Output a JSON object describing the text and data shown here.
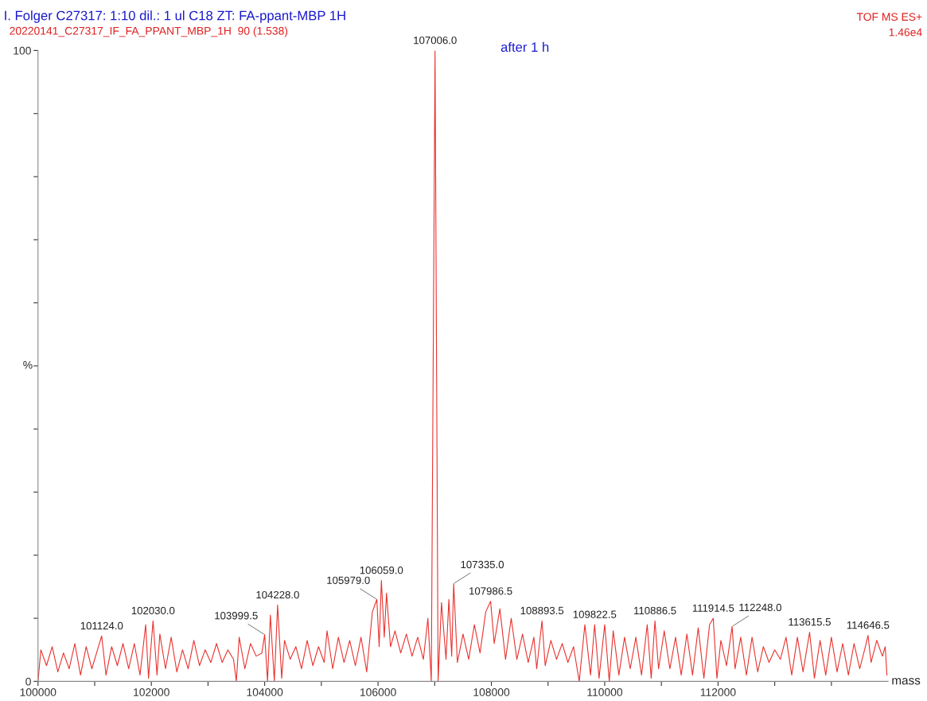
{
  "chart_data": {
    "type": "line",
    "title": "I. Folger C27317: 1:10 dil.: 1 ul C18 ZT: FA-ppant-MBP 1H",
    "subtitle": "20220141_C27317_IF_FA_PPANT_MBP_1H  90 (1.538)",
    "xlabel": "mass",
    "ylabel": "%",
    "xlim": [
      100000,
      115000
    ],
    "xticks": [
      100000,
      {
        "value": 101000,
        "label": null
      },
      102000,
      {
        "value": 103000,
        "label": null
      },
      104000,
      {
        "value": 105000,
        "label": null
      },
      106000,
      {
        "value": 107000,
        "label": null
      },
      108000,
      {
        "value": 109000,
        "label": null
      },
      110000,
      {
        "value": 111000,
        "label": null
      },
      112000,
      {
        "value": 113000,
        "label": null
      },
      {
        "value": 114000,
        "label": null
      }
    ],
    "ylim": [
      0,
      100
    ],
    "yticks": [
      0,
      {
        "value": 10,
        "label": null
      },
      {
        "value": 20,
        "label": null
      },
      {
        "value": 30,
        "label": null
      },
      {
        "value": 40,
        "label": null
      },
      {
        "value": 50,
        "label": null
      },
      {
        "value": 60,
        "label": null
      },
      {
        "value": 70,
        "label": null
      },
      {
        "value": 80,
        "label": null
      },
      {
        "value": 90,
        "label": null
      },
      100
    ],
    "grid": false,
    "series": [
      {
        "color": "#e8332f",
        "x": [
          100000,
          100050,
          100150,
          100250,
          100350,
          100450,
          100550,
          100650,
          100750,
          100850,
          100950,
          101050,
          101124,
          101200,
          101300,
          101400,
          101500,
          101600,
          101700,
          101800,
          101900,
          101950,
          102030,
          102100,
          102150,
          102250,
          102350,
          102450,
          102550,
          102650,
          102750,
          102850,
          102950,
          103050,
          103150,
          103250,
          103350,
          103450,
          103500,
          103550,
          103650,
          103750,
          103850,
          103950,
          103999.5,
          104050,
          104100,
          104170,
          104228,
          104300,
          104350,
          104450,
          104550,
          104650,
          104750,
          104850,
          104950,
          105050,
          105100,
          105200,
          105300,
          105400,
          105500,
          105600,
          105700,
          105800,
          105900,
          105979,
          106020,
          106059,
          106110,
          106150,
          106220,
          106300,
          106400,
          106500,
          106600,
          106700,
          106800,
          106880,
          106940,
          107006,
          107060,
          107120,
          107200,
          107250,
          107300,
          107335,
          107400,
          107500,
          107600,
          107700,
          107800,
          107900,
          107986.5,
          108050,
          108150,
          108250,
          108350,
          108450,
          108550,
          108650,
          108750,
          108800,
          108893.5,
          108950,
          109050,
          109150,
          109250,
          109350,
          109450,
          109550,
          109650,
          109750,
          109822.5,
          109900,
          110000,
          110080,
          110150,
          110250,
          110350,
          110450,
          110550,
          110650,
          110750,
          110820,
          110886.5,
          110950,
          111050,
          111150,
          111250,
          111350,
          111450,
          111550,
          111650,
          111750,
          111850,
          111914.5,
          111980,
          112050,
          112150,
          112248,
          112300,
          112400,
          112500,
          112600,
          112700,
          112800,
          112900,
          113000,
          113100,
          113200,
          113300,
          113400,
          113500,
          113615.5,
          113700,
          113800,
          113900,
          114000,
          114100,
          114200,
          114300,
          114400,
          114500,
          114600,
          114646.5,
          114700,
          114800,
          114900,
          114950,
          114980
        ],
        "values": [
          0,
          5.0,
          2.5,
          5.5,
          1.5,
          4.5,
          2.0,
          6.0,
          1.0,
          5.5,
          2.0,
          5.0,
          7.2,
          1.0,
          5.5,
          2.5,
          6.0,
          2.0,
          6.0,
          1.0,
          9.0,
          0.5,
          9.6,
          1.0,
          7.5,
          2.0,
          7.0,
          1.5,
          5.0,
          2.0,
          6.5,
          2.5,
          5.0,
          3.0,
          6.0,
          3.0,
          5.0,
          3.5,
          0,
          7.0,
          2.0,
          6.0,
          4.0,
          4.5,
          7.4,
          0,
          10.5,
          0,
          12.1,
          0.5,
          6.5,
          3.5,
          5.5,
          2.0,
          6.5,
          2.5,
          5.5,
          3.0,
          8.0,
          2.0,
          7.0,
          3.0,
          6.5,
          2.5,
          7.0,
          1.5,
          11.0,
          13.0,
          5.5,
          16.0,
          7.0,
          14.0,
          5.5,
          8.0,
          4.5,
          7.5,
          4.0,
          7.0,
          3.5,
          10.0,
          0,
          100,
          0,
          12.5,
          3.5,
          13.0,
          4.0,
          15.5,
          3.0,
          7.5,
          3.5,
          9.0,
          4.5,
          11.0,
          12.7,
          6.0,
          11.5,
          3.5,
          10.0,
          3.5,
          7.5,
          3.0,
          7.0,
          2.0,
          9.6,
          2.5,
          6.5,
          3.5,
          6.0,
          3.0,
          5.5,
          0,
          9.0,
          1.0,
          9.0,
          0.5,
          9.0,
          0,
          8.0,
          1.0,
          7.0,
          2.0,
          7.0,
          1.0,
          9.0,
          0.5,
          9.6,
          2.0,
          8.0,
          2.0,
          7.0,
          1.0,
          7.5,
          1.0,
          8.5,
          0.5,
          9.0,
          10.0,
          0.5,
          6.5,
          2.5,
          8.7,
          2.0,
          7.0,
          1.0,
          7.0,
          1.5,
          5.5,
          3.0,
          5.0,
          3.5,
          7.0,
          1.0,
          7.0,
          1.5,
          7.8,
          0.5,
          6.5,
          1.0,
          7.0,
          1.5,
          6.0,
          1.0,
          6.0,
          2.0,
          5.5,
          7.3,
          3.0,
          6.5,
          4.0,
          5.5,
          1.0
        ]
      }
    ],
    "annotations": [
      "after 1 h",
      "TOF MS ES+",
      "1.46e4",
      {
        "text": "101124.0",
        "x": 101124,
        "y": 7.2
      },
      {
        "text": "102030.0",
        "x": 102030,
        "y": 9.6
      },
      {
        "text": "103999.5",
        "x": 103999.5,
        "y": 7.4
      },
      {
        "text": "104228.0",
        "x": 104228,
        "y": 12.1
      },
      {
        "text": "105979.0",
        "x": 105979,
        "y": 13.0
      },
      {
        "text": "106059.0",
        "x": 106059,
        "y": 16.0
      },
      {
        "text": "107006.0",
        "x": 107006,
        "y": 100
      },
      {
        "text": "107335.0",
        "x": 107335,
        "y": 15.5
      },
      {
        "text": "107986.5",
        "x": 107986.5,
        "y": 12.7
      },
      {
        "text": "108893.5",
        "x": 108893.5,
        "y": 9.6
      },
      {
        "text": "109822.5",
        "x": 109822.5,
        "y": 9.0
      },
      {
        "text": "110886.5",
        "x": 110886.5,
        "y": 9.6
      },
      {
        "text": "111914.5",
        "x": 111914.5,
        "y": 10.0
      },
      {
        "text": "112248.0",
        "x": 112248,
        "y": 8.7
      },
      {
        "text": "113615.5",
        "x": 113615.5,
        "y": 7.8
      },
      {
        "text": "114646.5",
        "x": 114646.5,
        "y": 7.3
      }
    ]
  }
}
